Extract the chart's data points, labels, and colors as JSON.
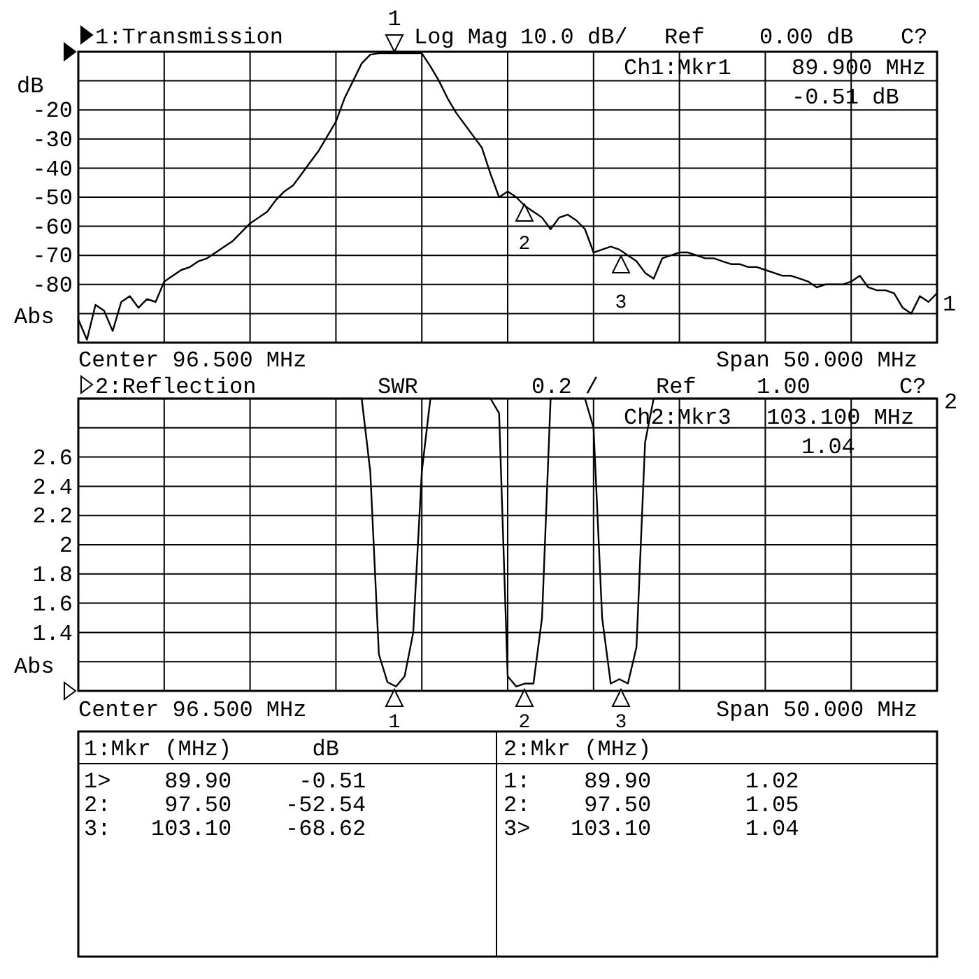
{
  "chart_data": [
    {
      "type": "line",
      "title": "1:Transmission",
      "ylabel": "dB",
      "color": "#000000",
      "grid": true,
      "tick_labels": "y",
      "categories": [
        null,
        null,
        null,
        null,
        null,
        null,
        null,
        null,
        null,
        null,
        null,
        null,
        null,
        null,
        null,
        null,
        null,
        null,
        null,
        null,
        null,
        null,
        null,
        null,
        null,
        null,
        null,
        null,
        null,
        null,
        null,
        null,
        null,
        null,
        null,
        null,
        null,
        null,
        null,
        null,
        null,
        null,
        null,
        null,
        null,
        null,
        null,
        null,
        null,
        null,
        null,
        null,
        null,
        null,
        null,
        null,
        null,
        null,
        null,
        null,
        null,
        null,
        null,
        null,
        null,
        null,
        null,
        null,
        null,
        null,
        null,
        null,
        null,
        null,
        null,
        null,
        null,
        null,
        null,
        null,
        null,
        null,
        null,
        null,
        null,
        null,
        null,
        null,
        null,
        null,
        null,
        null,
        null,
        null,
        null,
        null,
        null,
        null,
        null,
        null,
        null
      ],
      "ylim": [
        -100,
        0
      ],
      "yticks": [
        {
          "value": -100,
          "label": null
        },
        {
          "value": -90,
          "label": null
        },
        -80,
        -70,
        -60,
        -50,
        -40,
        -30,
        -20,
        {
          "value": -10,
          "label": null
        },
        {
          "value": 0,
          "label": null
        }
      ],
      "values": [
        -92,
        -99,
        -87,
        -89,
        -96,
        -86,
        -84,
        -88,
        -85,
        -86,
        -79,
        -77,
        -75,
        -74,
        -72,
        -71,
        -69,
        -67,
        -65,
        -62,
        -59,
        -57,
        -55,
        -51,
        -48,
        -46,
        -42,
        -38,
        -34,
        -29,
        -24,
        -16,
        -10,
        -4,
        -1,
        -0.5,
        -0.5,
        -0.5,
        -0.5,
        -0.5,
        -0.5,
        -5,
        -10,
        -16,
        -21,
        -25,
        -29,
        -33,
        -42,
        -50,
        -48,
        -50,
        -53,
        -55,
        -57,
        -61,
        -57,
        -56,
        -58,
        -61,
        -69,
        -68,
        -67,
        -68,
        -70,
        -72,
        -76,
        -78,
        -71,
        -70,
        -69,
        -69,
        -70,
        -71,
        -71,
        -72,
        -73,
        -73,
        -74,
        -74,
        -75,
        -76,
        -77,
        -77,
        -78,
        -79,
        -81,
        -80,
        -80,
        -80,
        -79,
        -77,
        -81,
        -82,
        -82,
        -83,
        -88,
        -90,
        -84,
        -86,
        -83
      ],
      "annotations": [
        "Log Mag",
        "10.0 dB/",
        "Ref",
        "0.00 dB",
        "C?",
        "Ch1:Mkr1",
        "89.900 MHz",
        "-0.51 dB",
        "Abs",
        "Center 96.500 MHz",
        "Span 50.000 MHz",
        "1",
        "1",
        "2",
        "3"
      ]
    },
    {
      "type": "line",
      "title": "2:Reflection",
      "color": "#000000",
      "grid": true,
      "tick_labels": "y",
      "categories": [
        null,
        null,
        null,
        null,
        null,
        null,
        null,
        null,
        null,
        null,
        null,
        null,
        null,
        null,
        null,
        null,
        null,
        null,
        null,
        null,
        null,
        null,
        null,
        null,
        null,
        null,
        null,
        null,
        null,
        null,
        null,
        null,
        null,
        null,
        null,
        null,
        null,
        null,
        null,
        null,
        null,
        null,
        null,
        null,
        null,
        null,
        null,
        null,
        null,
        null,
        null,
        null,
        null,
        null,
        null,
        null,
        null,
        null,
        null,
        null,
        null,
        null,
        null,
        null,
        null,
        null,
        null,
        null,
        null,
        null,
        null,
        null,
        null,
        null,
        null,
        null,
        null,
        null,
        null,
        null,
        null,
        null,
        null,
        null,
        null,
        null,
        null,
        null,
        null,
        null,
        null,
        null,
        null,
        null,
        null,
        null,
        null,
        null,
        null,
        null,
        null
      ],
      "ylim": [
        1,
        3
      ],
      "yticks": [
        {
          "value": 1,
          "label": null
        },
        {
          "value": 1.2,
          "label": null
        },
        1.4,
        1.6,
        1.8,
        2,
        2.2,
        2.4,
        2.6,
        {
          "value": 2.8,
          "label": null
        },
        {
          "value": 3,
          "label": null
        }
      ],
      "values": [
        3,
        3,
        3,
        3,
        3,
        3,
        3,
        3,
        3,
        3,
        3,
        3,
        3,
        3,
        3,
        3,
        3,
        3,
        3,
        3,
        3,
        3,
        3,
        3,
        3,
        3,
        3,
        3,
        3,
        3,
        3,
        3,
        3,
        3,
        2.5,
        1.25,
        1.06,
        1.03,
        1.1,
        1.4,
        2.5,
        3,
        3,
        3,
        3,
        3,
        3,
        3,
        3,
        2.9,
        1.1,
        1.03,
        1.05,
        1.05,
        1.5,
        3,
        3,
        3,
        3,
        3,
        2.8,
        1.5,
        1.05,
        1.08,
        1.05,
        1.3,
        2.7,
        3,
        3,
        3,
        3,
        3,
        3,
        3,
        3,
        3,
        3,
        3,
        3,
        3,
        3,
        3,
        3,
        3,
        3,
        3,
        3,
        3,
        3,
        3,
        3,
        3,
        3,
        3,
        3,
        3,
        3,
        3,
        3,
        3,
        3
      ],
      "annotations": [
        "SWR",
        "0.2 /",
        "Ref",
        "1.00",
        "C?",
        "2",
        "Ch2:Mkr3",
        "103.100 MHz",
        "1.04",
        "Abs",
        "Center 96.500 MHz",
        "Span 50.000 MHz",
        "1:Mkr (MHz)      dB",
        "1>    89.90     -0.51",
        "2:    97.50    -52.54",
        "3:   103.10    -68.62",
        "2:Mkr (MHz)",
        "1:    89.90       1.02",
        "2:    97.50       1.05",
        "3>   103.10       1.04",
        "1",
        "2",
        "3"
      ]
    }
  ]
}
